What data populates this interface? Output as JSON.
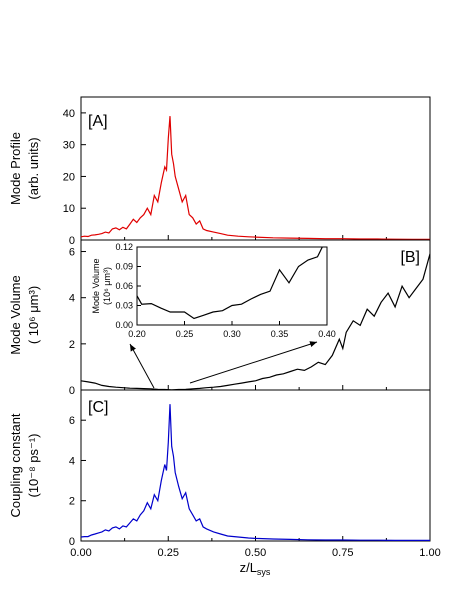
{
  "chart_data": [
    {
      "type": "line",
      "panel_label": "[A]",
      "ylabel": "Mode Profile",
      "ylabel2": "(arb. units)",
      "xlim": [
        0,
        1
      ],
      "ylim": [
        0,
        45
      ],
      "yticks": [
        0,
        10,
        20,
        30,
        40
      ],
      "line_color": "#e00000",
      "series": [
        {
          "x": [
            0.0,
            0.01,
            0.02,
            0.03,
            0.04,
            0.05,
            0.06,
            0.07,
            0.08,
            0.09,
            0.1,
            0.11,
            0.12,
            0.13,
            0.14,
            0.15,
            0.16,
            0.17,
            0.18,
            0.19,
            0.2,
            0.21,
            0.22,
            0.23,
            0.24,
            0.245,
            0.25,
            0.255,
            0.26,
            0.265,
            0.27,
            0.28,
            0.29,
            0.3,
            0.31,
            0.32,
            0.33,
            0.34,
            0.35,
            0.36,
            0.38,
            0.4,
            0.42,
            0.45,
            0.48,
            0.5,
            0.55,
            0.6,
            0.65,
            0.7,
            0.75,
            0.8,
            0.85,
            0.9,
            0.95,
            1.0
          ],
          "y": [
            1,
            1.2,
            1.1,
            1.5,
            1.6,
            1.8,
            2,
            2.5,
            2.2,
            3.5,
            3.8,
            3.2,
            4,
            3.5,
            5,
            6.5,
            5.5,
            7,
            8,
            10,
            8,
            14,
            12,
            18,
            23,
            22,
            32,
            39,
            27,
            24,
            20,
            16,
            12,
            14,
            8,
            7,
            5,
            6,
            3.5,
            3,
            2.5,
            2,
            1.5,
            1.2,
            1,
            0.9,
            0.7,
            0.6,
            0.5,
            0.4,
            0.4,
            0.3,
            0.3,
            0.25,
            0.2,
            0.2
          ]
        }
      ]
    },
    {
      "type": "line",
      "panel_label": "[B]",
      "ylabel": "Mode Volume",
      "ylabel2": "( 10⁶ μm³)",
      "xlim": [
        0,
        1
      ],
      "ylim": [
        0,
        6.5
      ],
      "yticks": [
        0,
        2,
        4,
        6
      ],
      "line_color": "#000000",
      "series": [
        {
          "x": [
            0.0,
            0.02,
            0.04,
            0.06,
            0.08,
            0.1,
            0.12,
            0.14,
            0.16,
            0.18,
            0.2,
            0.22,
            0.24,
            0.26,
            0.28,
            0.3,
            0.32,
            0.34,
            0.36,
            0.38,
            0.4,
            0.42,
            0.44,
            0.46,
            0.48,
            0.5,
            0.52,
            0.54,
            0.56,
            0.58,
            0.6,
            0.62,
            0.64,
            0.66,
            0.68,
            0.7,
            0.72,
            0.74,
            0.75,
            0.76,
            0.78,
            0.8,
            0.82,
            0.84,
            0.86,
            0.88,
            0.9,
            0.92,
            0.94,
            0.96,
            0.98,
            1.0
          ],
          "y": [
            0.4,
            0.35,
            0.3,
            0.2,
            0.15,
            0.12,
            0.1,
            0.08,
            0.07,
            0.06,
            0.05,
            0.03,
            0.02,
            0.01,
            0.02,
            0.03,
            0.05,
            0.07,
            0.1,
            0.12,
            0.15,
            0.2,
            0.25,
            0.3,
            0.35,
            0.4,
            0.5,
            0.55,
            0.65,
            0.7,
            0.8,
            0.9,
            0.85,
            1.0,
            1.2,
            1.1,
            1.5,
            2.2,
            1.8,
            2.5,
            3.0,
            2.8,
            3.5,
            3.2,
            3.8,
            4.2,
            3.6,
            4.5,
            4.0,
            4.4,
            4.8,
            5.9
          ]
        }
      ]
    },
    {
      "type": "line",
      "panel_label": "inset",
      "ylabel": "Mode Volume",
      "ylabel2": "(10⁶ μm³)",
      "xlim": [
        0.2,
        0.4
      ],
      "ylim": [
        0,
        0.12
      ],
      "xticks": [
        0.2,
        0.25,
        0.3,
        0.35,
        0.4
      ],
      "xtick_labels": [
        "0.20",
        "0.25",
        "0.30",
        "0.35",
        "0.40"
      ],
      "yticks": [
        0,
        0.03,
        0.06,
        0.09,
        0.12
      ],
      "ytick_labels": [
        "0.00",
        "0.03",
        "0.06",
        "0.09",
        "0.12"
      ],
      "line_color": "#000000",
      "series": [
        {
          "x": [
            0.2,
            0.205,
            0.215,
            0.225,
            0.235,
            0.25,
            0.26,
            0.27,
            0.28,
            0.29,
            0.3,
            0.31,
            0.32,
            0.33,
            0.34,
            0.35,
            0.36,
            0.37,
            0.38,
            0.39,
            0.395
          ],
          "y": [
            0.045,
            0.032,
            0.033,
            0.026,
            0.02,
            0.02,
            0.01,
            0.015,
            0.02,
            0.022,
            0.03,
            0.032,
            0.04,
            0.047,
            0.052,
            0.085,
            0.065,
            0.09,
            0.1,
            0.105,
            0.12
          ]
        }
      ]
    },
    {
      "type": "line",
      "panel_label": "[C]",
      "ylabel": "Coupling constant",
      "ylabel2": "(10⁻⁸ ps⁻¹)",
      "xlabel": "z/L_sys",
      "xlabel_main": "z/L",
      "xlabel_sub": "sys",
      "xlim": [
        0,
        1
      ],
      "ylim": [
        0,
        7.5
      ],
      "xticks": [
        0,
        0.25,
        0.5,
        0.75,
        1.0
      ],
      "xtick_labels": [
        "0.00",
        "0.25",
        "0.50",
        "0.75",
        "1.00"
      ],
      "yticks": [
        0,
        2,
        4,
        6
      ],
      "line_color": "#0000cc",
      "series": [
        {
          "x": [
            0.0,
            0.01,
            0.02,
            0.03,
            0.04,
            0.05,
            0.06,
            0.07,
            0.08,
            0.09,
            0.1,
            0.11,
            0.12,
            0.13,
            0.14,
            0.15,
            0.16,
            0.17,
            0.18,
            0.19,
            0.2,
            0.21,
            0.22,
            0.23,
            0.24,
            0.245,
            0.25,
            0.255,
            0.26,
            0.265,
            0.27,
            0.28,
            0.29,
            0.3,
            0.31,
            0.32,
            0.33,
            0.34,
            0.35,
            0.36,
            0.38,
            0.4,
            0.42,
            0.45,
            0.48,
            0.5,
            0.55,
            0.6,
            0.65,
            0.7,
            0.75,
            0.8,
            0.85,
            0.9,
            0.95,
            1.0
          ],
          "y": [
            0.2,
            0.22,
            0.22,
            0.3,
            0.35,
            0.4,
            0.45,
            0.55,
            0.5,
            0.65,
            0.7,
            0.6,
            0.75,
            0.7,
            0.9,
            1.1,
            1.0,
            1.3,
            1.5,
            1.9,
            1.6,
            2.3,
            2.0,
            3.0,
            3.8,
            3.5,
            4.9,
            6.8,
            4.7,
            4.2,
            3.4,
            2.7,
            2.1,
            2.4,
            1.6,
            1.3,
            1.0,
            1.1,
            0.7,
            0.6,
            0.45,
            0.35,
            0.25,
            0.2,
            0.15,
            0.13,
            0.1,
            0.08,
            0.06,
            0.05,
            0.05,
            0.04,
            0.04,
            0.03,
            0.03,
            0.03
          ]
        }
      ]
    }
  ]
}
